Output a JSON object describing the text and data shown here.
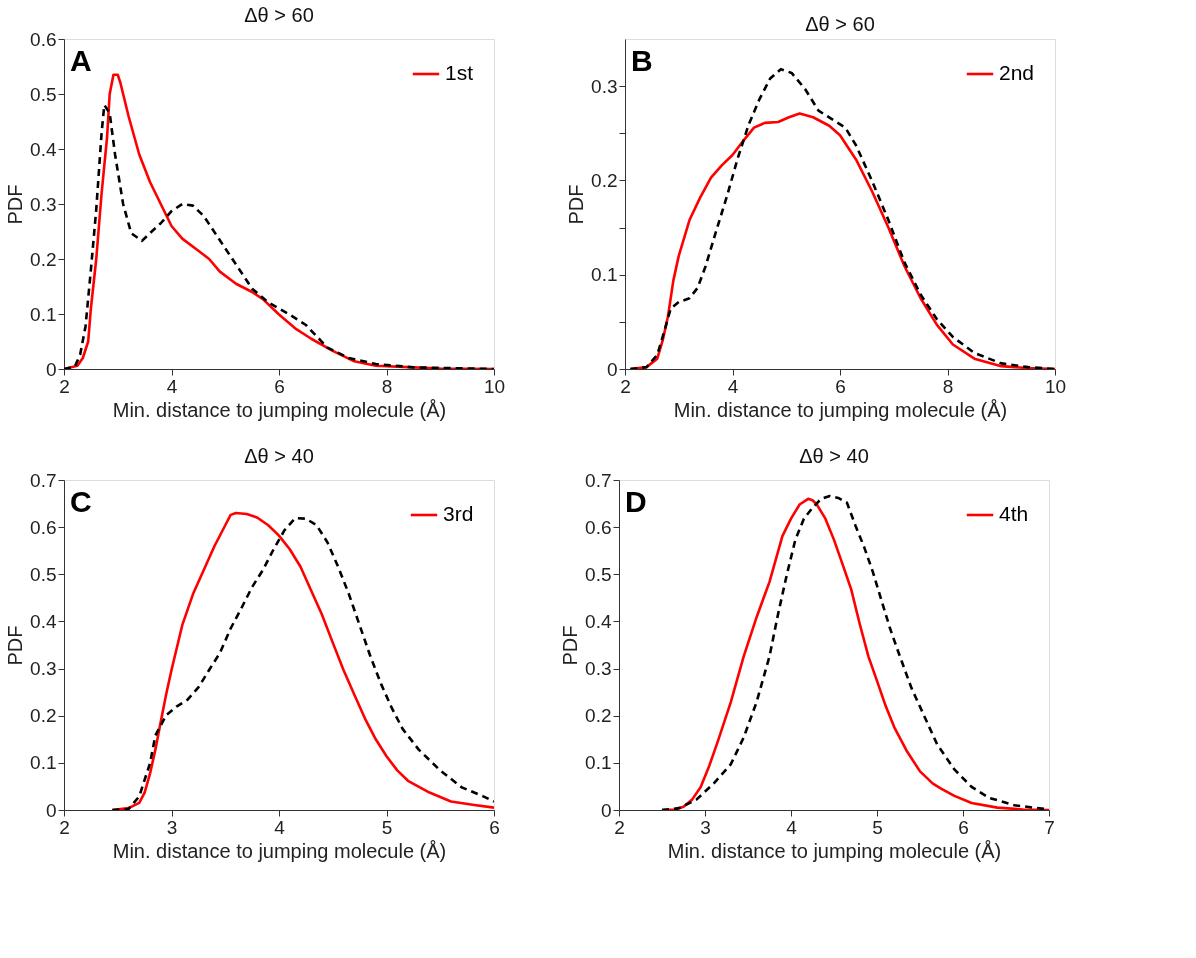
{
  "chart_data": [
    {
      "type": "line",
      "title": "Δθ > 60",
      "xlabel": "Min. distance to jumping molecule (Å)",
      "ylabel": "PDF",
      "annotations": [
        "A"
      ],
      "xlim": [
        2,
        10
      ],
      "ylim": [
        0,
        0.6
      ],
      "xticks": [
        2,
        4,
        6,
        8,
        10
      ],
      "yticks": [
        0,
        0.1,
        0.2,
        0.3,
        0.4,
        0.5,
        0.6
      ],
      "legend": "top right",
      "grid": false,
      "series": [
        {
          "name": "1st",
          "color": "#ff0000",
          "line_style": "solid",
          "x": [
            2.0,
            2.25,
            2.35,
            2.45,
            2.5,
            2.6,
            2.7,
            2.8,
            2.85,
            2.92,
            3.0,
            3.05,
            3.2,
            3.4,
            3.6,
            3.8,
            4.0,
            4.2,
            4.5,
            4.7,
            4.9,
            5.2,
            5.5,
            5.7,
            6.0,
            6.3,
            6.6,
            7.0,
            7.4,
            7.8,
            8.5,
            9.0,
            10.0
          ],
          "values": [
            0,
            0.006,
            0.02,
            0.05,
            0.11,
            0.2,
            0.32,
            0.42,
            0.5,
            0.535,
            0.535,
            0.52,
            0.46,
            0.39,
            0.34,
            0.3,
            0.26,
            0.237,
            0.215,
            0.2,
            0.177,
            0.155,
            0.14,
            0.127,
            0.099,
            0.074,
            0.055,
            0.033,
            0.014,
            0.006,
            0.003,
            0.001,
            0
          ]
        },
        {
          "color": "#000000",
          "line_style": "dashed",
          "x": [
            2.0,
            2.2,
            2.3,
            2.4,
            2.5,
            2.6,
            2.7,
            2.75,
            2.85,
            2.95,
            3.1,
            3.25,
            3.45,
            3.6,
            3.8,
            4.0,
            4.2,
            4.4,
            4.6,
            4.9,
            5.2,
            5.5,
            5.8,
            6.2,
            6.5,
            6.9,
            7.3,
            7.8,
            8.5,
            9.5,
            10.0
          ],
          "values": [
            0,
            0.004,
            0.026,
            0.077,
            0.18,
            0.29,
            0.43,
            0.48,
            0.465,
            0.39,
            0.3,
            0.247,
            0.233,
            0.247,
            0.265,
            0.287,
            0.3,
            0.297,
            0.278,
            0.234,
            0.19,
            0.146,
            0.121,
            0.099,
            0.08,
            0.039,
            0.02,
            0.009,
            0.003,
            0.001,
            0
          ]
        }
      ]
    },
    {
      "type": "line",
      "title": "Δθ > 60",
      "xlabel": "Min. distance to jumping molecule (Å)",
      "ylabel": "PDF",
      "annotations": [
        "B"
      ],
      "xlim": [
        2,
        10
      ],
      "ylim": [
        0,
        0.35
      ],
      "xticks": [
        2,
        4,
        6,
        8,
        10
      ],
      "yticks": [
        0,
        {
          "value": 0.05,
          "label": null
        },
        0.1,
        {
          "value": 0.15,
          "label": null
        },
        0.2,
        {
          "value": 0.25,
          "label": null
        },
        0.3
      ],
      "legend": "top right",
      "grid": false,
      "series": [
        {
          "name": "2nd",
          "color": "#ff0000",
          "line_style": "solid",
          "x": [
            2.1,
            2.4,
            2.6,
            2.7,
            2.8,
            2.9,
            3.0,
            3.2,
            3.4,
            3.6,
            3.8,
            4.0,
            4.2,
            4.4,
            4.6,
            4.85,
            5.05,
            5.25,
            5.5,
            5.8,
            6.0,
            6.3,
            6.6,
            6.9,
            7.2,
            7.5,
            7.8,
            8.1,
            8.5,
            9.0,
            9.5,
            10.0
          ],
          "values": [
            0,
            0.002,
            0.011,
            0.03,
            0.056,
            0.094,
            0.12,
            0.158,
            0.182,
            0.203,
            0.216,
            0.227,
            0.242,
            0.256,
            0.261,
            0.262,
            0.267,
            0.271,
            0.267,
            0.258,
            0.248,
            0.222,
            0.188,
            0.15,
            0.109,
            0.075,
            0.047,
            0.026,
            0.011,
            0.003,
            0.001,
            0
          ]
        },
        {
          "color": "#000000",
          "line_style": "dashed",
          "x": [
            2.1,
            2.4,
            2.6,
            2.7,
            2.85,
            3.0,
            3.2,
            3.35,
            3.5,
            3.7,
            3.9,
            4.1,
            4.3,
            4.5,
            4.7,
            4.9,
            5.1,
            5.35,
            5.6,
            5.85,
            6.1,
            6.3,
            6.6,
            6.9,
            7.2,
            7.5,
            7.8,
            8.1,
            8.5,
            9.0,
            9.5,
            10.0
          ],
          "values": [
            0,
            0.002,
            0.015,
            0.034,
            0.064,
            0.071,
            0.075,
            0.086,
            0.109,
            0.147,
            0.184,
            0.224,
            0.259,
            0.286,
            0.308,
            0.318,
            0.314,
            0.297,
            0.274,
            0.265,
            0.256,
            0.237,
            0.199,
            0.158,
            0.113,
            0.079,
            0.053,
            0.034,
            0.017,
            0.006,
            0.002,
            0
          ]
        }
      ]
    },
    {
      "type": "line",
      "title": "Δθ > 40",
      "xlabel": "Min. distance to jumping molecule (Å)",
      "ylabel": "PDF",
      "annotations": [
        "C"
      ],
      "xlim": [
        2,
        6
      ],
      "ylim": [
        0,
        0.7
      ],
      "xticks": [
        2,
        3,
        4,
        5,
        6
      ],
      "yticks": [
        0,
        0.1,
        0.2,
        0.3,
        0.4,
        0.5,
        0.6,
        0.7
      ],
      "legend": "top right",
      "grid": false,
      "series": [
        {
          "name": "3rd",
          "color": "#ff0000",
          "line_style": "solid",
          "x": [
            2.45,
            2.6,
            2.7,
            2.75,
            2.8,
            2.85,
            2.9,
            2.95,
            3.0,
            3.1,
            3.2,
            3.3,
            3.4,
            3.5,
            3.55,
            3.6,
            3.7,
            3.8,
            3.9,
            4.0,
            4.1,
            4.2,
            4.3,
            4.4,
            4.5,
            4.6,
            4.7,
            4.8,
            4.9,
            5.0,
            5.1,
            5.2,
            5.4,
            5.6,
            5.8,
            6.0
          ],
          "values": [
            0,
            0.004,
            0.015,
            0.037,
            0.077,
            0.128,
            0.187,
            0.245,
            0.297,
            0.392,
            0.458,
            0.509,
            0.56,
            0.604,
            0.626,
            0.63,
            0.628,
            0.62,
            0.604,
            0.582,
            0.553,
            0.516,
            0.465,
            0.414,
            0.355,
            0.297,
            0.245,
            0.194,
            0.15,
            0.114,
            0.084,
            0.062,
            0.037,
            0.018,
            0.011,
            0.005
          ]
        },
        {
          "color": "#000000",
          "line_style": "dashed",
          "x": [
            2.45,
            2.6,
            2.7,
            2.8,
            2.85,
            2.95,
            3.05,
            3.15,
            3.25,
            3.35,
            3.45,
            3.55,
            3.65,
            3.75,
            3.85,
            3.95,
            4.05,
            4.15,
            4.25,
            4.35,
            4.45,
            4.55,
            4.65,
            4.75,
            4.85,
            4.95,
            5.05,
            5.15,
            5.3,
            5.5,
            5.7,
            5.9,
            6.0
          ],
          "values": [
            0,
            0.002,
            0.029,
            0.099,
            0.158,
            0.201,
            0.22,
            0.234,
            0.26,
            0.297,
            0.333,
            0.385,
            0.428,
            0.473,
            0.509,
            0.553,
            0.593,
            0.619,
            0.618,
            0.604,
            0.568,
            0.516,
            0.458,
            0.392,
            0.326,
            0.267,
            0.216,
            0.172,
            0.128,
            0.084,
            0.048,
            0.029,
            0.018
          ]
        }
      ]
    },
    {
      "type": "line",
      "title": "Δθ > 40",
      "xlabel": "Min. distance to jumping molecule (Å)",
      "ylabel": "PDF",
      "annotations": [
        "D"
      ],
      "xlim": [
        2,
        7
      ],
      "ylim": [
        0,
        0.7
      ],
      "xticks": [
        2,
        3,
        4,
        5,
        6,
        7
      ],
      "yticks": [
        0,
        0.1,
        0.2,
        0.3,
        0.4,
        0.5,
        0.6,
        0.7
      ],
      "legend": "top right",
      "grid": false,
      "series": [
        {
          "name": "4th",
          "color": "#ff0000",
          "line_style": "solid",
          "x": [
            2.5,
            2.65,
            2.75,
            2.85,
            2.95,
            3.05,
            3.15,
            3.3,
            3.45,
            3.6,
            3.75,
            3.9,
            4.0,
            4.1,
            4.2,
            4.25,
            4.3,
            4.4,
            4.5,
            4.6,
            4.7,
            4.8,
            4.9,
            5.0,
            5.1,
            5.2,
            5.35,
            5.5,
            5.65,
            5.75,
            5.9,
            6.1,
            6.4,
            6.7,
            7.0
          ],
          "values": [
            0,
            0.001,
            0.007,
            0.022,
            0.049,
            0.094,
            0.146,
            0.229,
            0.326,
            0.409,
            0.484,
            0.581,
            0.618,
            0.648,
            0.66,
            0.657,
            0.648,
            0.618,
            0.573,
            0.521,
            0.468,
            0.394,
            0.326,
            0.274,
            0.221,
            0.176,
            0.124,
            0.082,
            0.056,
            0.045,
            0.03,
            0.015,
            0.005,
            0.001,
            0
          ]
        },
        {
          "color": "#000000",
          "line_style": "dashed",
          "x": [
            2.5,
            2.7,
            2.9,
            3.1,
            3.3,
            3.45,
            3.6,
            3.75,
            3.85,
            3.95,
            4.05,
            4.15,
            4.25,
            4.35,
            4.45,
            4.55,
            4.65,
            4.75,
            4.85,
            4.95,
            5.05,
            5.15,
            5.25,
            5.4,
            5.55,
            5.7,
            5.9,
            6.1,
            6.3,
            6.6,
            7.0
          ],
          "values": [
            0,
            0.004,
            0.022,
            0.056,
            0.097,
            0.154,
            0.229,
            0.326,
            0.416,
            0.498,
            0.573,
            0.618,
            0.641,
            0.66,
            0.666,
            0.662,
            0.652,
            0.603,
            0.558,
            0.506,
            0.446,
            0.386,
            0.334,
            0.259,
            0.199,
            0.139,
            0.086,
            0.049,
            0.026,
            0.01,
            0.001
          ]
        }
      ]
    }
  ]
}
